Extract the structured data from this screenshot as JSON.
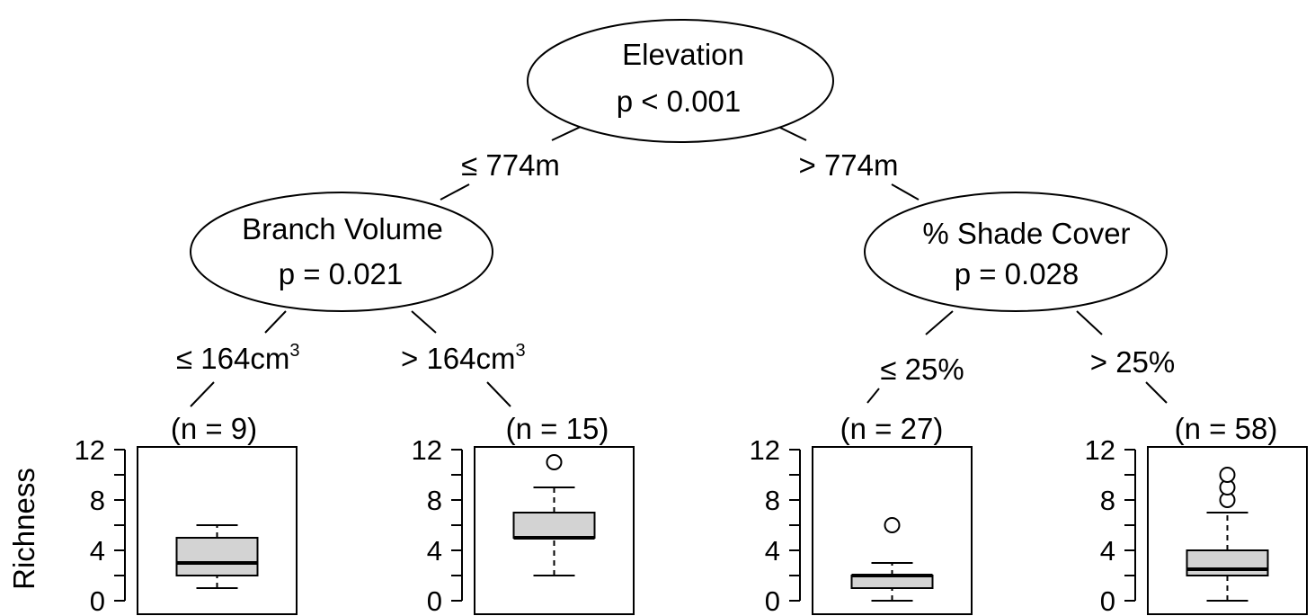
{
  "tree": {
    "root": {
      "variable": "Elevation",
      "p": "p < 0.001"
    },
    "left_edge": "≤ 774m",
    "right_edge": "> 774m",
    "left_node": {
      "variable": "Branch Volume",
      "p": "p = 0.021",
      "left_edge": {
        "text": "≤ 164cm",
        "sup": "3"
      },
      "right_edge": {
        "text": "> 164cm",
        "sup": "3"
      }
    },
    "right_node": {
      "variable": "% Shade Cover",
      "p": "p = 0.028",
      "left_edge": "≤ 25%",
      "right_edge": "> 25%"
    }
  },
  "chart_data": {
    "type": "boxplot",
    "ylabel": "Richness",
    "ylim": [
      0,
      12
    ],
    "yticks": [
      0,
      4,
      8,
      12
    ],
    "leaves": [
      {
        "n_label": "(n = 9)",
        "whisker_low": 1,
        "q1": 2,
        "median": 3,
        "q3": 5,
        "whisker_high": 6,
        "outliers": []
      },
      {
        "n_label": "(n = 15)",
        "whisker_low": 2,
        "q1": 5,
        "median": 5,
        "q3": 7,
        "whisker_high": 9,
        "outliers": [
          11
        ]
      },
      {
        "n_label": "(n = 27)",
        "whisker_low": 0,
        "q1": 1,
        "median": 2,
        "q3": 2,
        "whisker_high": 3,
        "outliers": [
          6
        ]
      },
      {
        "n_label": "(n = 58)",
        "whisker_low": 0,
        "q1": 2,
        "median": 2.5,
        "q3": 4,
        "whisker_high": 7,
        "outliers": [
          8,
          9,
          10
        ]
      }
    ],
    "box_color": "#d3d3d3"
  }
}
